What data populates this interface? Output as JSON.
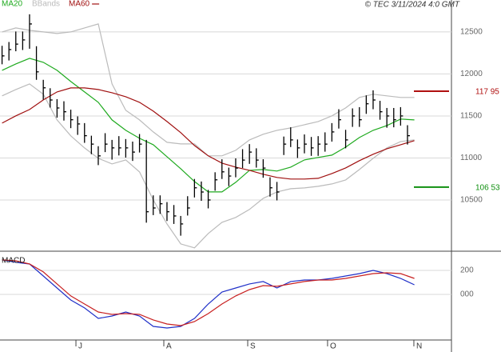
{
  "chart_data": [
    {
      "type": "ohlc",
      "timestamp": "© TEC 3/11/2024 4:0 GMT",
      "xlim": [
        -0.3,
        65.4
      ],
      "xticks": [
        {
          "value": 10.75,
          "label": "J"
        },
        {
          "value": 23.54,
          "label": "A"
        },
        {
          "value": 35.75,
          "label": "S"
        },
        {
          "value": 47.37,
          "label": "O"
        },
        {
          "value": 59.93,
          "label": "N"
        }
      ],
      "ylim": [
        9900,
        12880
      ],
      "yticks": [
        10500,
        11000,
        11500,
        12000,
        12500
      ],
      "grid": true,
      "bars": {
        "color": "#000000",
        "x": [
          0,
          1,
          2,
          3,
          4,
          5,
          6,
          7,
          8,
          9,
          10,
          11,
          12,
          13,
          14,
          15,
          16,
          17,
          18,
          19,
          20,
          21,
          22,
          23,
          24,
          25,
          26,
          27,
          28,
          29,
          30,
          31,
          32,
          33,
          34,
          35,
          36,
          37,
          38,
          39,
          40,
          41,
          42,
          43,
          44,
          45,
          46,
          47,
          48,
          49,
          50,
          51,
          52,
          53,
          54,
          55,
          56,
          57,
          58,
          59
        ],
        "high": [
          12335,
          12380,
          12505,
          12505,
          12710,
          12330,
          11930,
          11830,
          11700,
          11675,
          11575,
          11495,
          11415,
          11265,
          11140,
          11295,
          11215,
          11260,
          11225,
          11195,
          11285,
          11215,
          10555,
          10555,
          10475,
          10440,
          10310,
          10545,
          10750,
          10720,
          10620,
          10830,
          10985,
          10885,
          10995,
          11105,
          11165,
          11115,
          10985,
          10770,
          10715,
          11255,
          11365,
          11220,
          11280,
          11250,
          11260,
          11305,
          11415,
          11580,
          11335,
          11590,
          11605,
          11745,
          11805,
          11680,
          11595,
          11595,
          11605,
          11390
        ],
        "low": [
          12115,
          12160,
          12270,
          12285,
          12300,
          11930,
          11695,
          11600,
          11480,
          11445,
          11355,
          11275,
          11180,
          11045,
          10915,
          11070,
          10980,
          11030,
          11005,
          10965,
          11065,
          10230,
          10320,
          10335,
          10250,
          10215,
          10075,
          10315,
          10530,
          10490,
          10400,
          10610,
          10750,
          10665,
          10770,
          10880,
          10930,
          10885,
          10765,
          10540,
          10495,
          11035,
          11130,
          11000,
          11055,
          11025,
          11025,
          11075,
          11195,
          11350,
          11115,
          11370,
          11370,
          11525,
          11580,
          11455,
          11360,
          11365,
          11385,
          11160
        ],
        "close": [
          12215,
          12290,
          12355,
          12405,
          12595,
          12025,
          11835,
          11690,
          11595,
          11550,
          11455,
          11405,
          11265,
          11165,
          11025,
          11165,
          11120,
          11120,
          11120,
          11070,
          11165,
          10360,
          10405,
          10455,
          10360,
          10310,
          10215,
          10405,
          10645,
          10595,
          10500,
          10740,
          10835,
          10785,
          10880,
          10975,
          11070,
          10975,
          10880,
          10645,
          10595,
          11165,
          11215,
          11120,
          11165,
          11120,
          11165,
          11165,
          11310,
          11455,
          11215,
          11500,
          11455,
          11645,
          11690,
          11550,
          11500,
          11455,
          11500,
          11265
        ]
      },
      "x": [
        0,
        2,
        4,
        6,
        8,
        10,
        12,
        14,
        16,
        18,
        20,
        22,
        24,
        26,
        28,
        30,
        32,
        34,
        36,
        38,
        40,
        42,
        44,
        46,
        48,
        50,
        52,
        54,
        56,
        58,
        60
      ],
      "series": [
        {
          "name": "MA20",
          "color": "#1faa1f",
          "values": [
            12043,
            12119,
            12186,
            12138,
            12043,
            11910,
            11786,
            11662,
            11453,
            11329,
            11234,
            11158,
            11015,
            10872,
            10720,
            10596,
            10596,
            10710,
            10853,
            10863,
            10844,
            10891,
            10977,
            11006,
            11034,
            11129,
            11243,
            11329,
            11386,
            11463,
            11453
          ]
        },
        {
          "name": "BBands",
          "color": "#bbbbbb",
          "values": [
            12500,
            12548,
            12519,
            12500,
            12481,
            12500,
            12548,
            12595,
            11881,
            11567,
            11453,
            11310,
            11186,
            11167,
            11167,
            11025,
            11025,
            11091,
            11215,
            11282,
            11329,
            11358,
            11396,
            11434,
            11501,
            11596,
            11720,
            11758,
            11739,
            11720,
            11720
          ],
          "lower": [
            11739,
            11815,
            11881,
            11758,
            11453,
            11263,
            11120,
            10996,
            10929,
            10977,
            10834,
            10501,
            10215,
            9977,
            9930,
            10101,
            10234,
            10292,
            10387,
            10520,
            10596,
            10634,
            10644,
            10663,
            10691,
            10739,
            10863,
            10996,
            11120,
            11196,
            11215
          ]
        },
        {
          "name": "MA60",
          "color": "#a01010",
          "values": [
            11415,
            11501,
            11577,
            11691,
            11786,
            11834,
            11834,
            11815,
            11777,
            11729,
            11662,
            11558,
            11434,
            11301,
            11148,
            11025,
            10939,
            10891,
            10853,
            10806,
            10768,
            10749,
            10749,
            10758,
            10815,
            10882,
            10968,
            11044,
            11110,
            11158,
            11206
          ]
        }
      ],
      "levels": [
        {
          "value": 11795,
          "label": "117 95",
          "color": "#b01010"
        },
        {
          "value": 10653,
          "label": "106 53",
          "color": "#109010"
        }
      ]
    },
    {
      "type": "line",
      "title": "MACD",
      "xlim": [
        -0.3,
        65.4
      ],
      "x": [
        0,
        2,
        4,
        6,
        8,
        10,
        12,
        14,
        16,
        18,
        20,
        22,
        24,
        26,
        28,
        30,
        32,
        34,
        36,
        38,
        40,
        42,
        44,
        46,
        48,
        50,
        52,
        54,
        56,
        58,
        60
      ],
      "ylim": [
        -380,
        353
      ],
      "yticks": [
        {
          "value": 0,
          "label": "000"
        },
        200
      ],
      "grid": true,
      "series": [
        {
          "color": "#2030c8",
          "values": [
            287,
            267,
            253,
            153,
            53,
            -47,
            -113,
            -200,
            -180,
            -147,
            -180,
            -267,
            -280,
            -267,
            -200,
            -80,
            20,
            53,
            87,
            107,
            53,
            107,
            120,
            120,
            133,
            153,
            173,
            200,
            173,
            133,
            80
          ]
        },
        {
          "color": "#c82020",
          "values": [
            287,
            280,
            253,
            187,
            87,
            -13,
            -80,
            -147,
            -167,
            -160,
            -167,
            -213,
            -247,
            -260,
            -227,
            -160,
            -80,
            -13,
            40,
            73,
            67,
            87,
            107,
            120,
            120,
            133,
            153,
            173,
            180,
            173,
            133
          ]
        }
      ]
    }
  ]
}
